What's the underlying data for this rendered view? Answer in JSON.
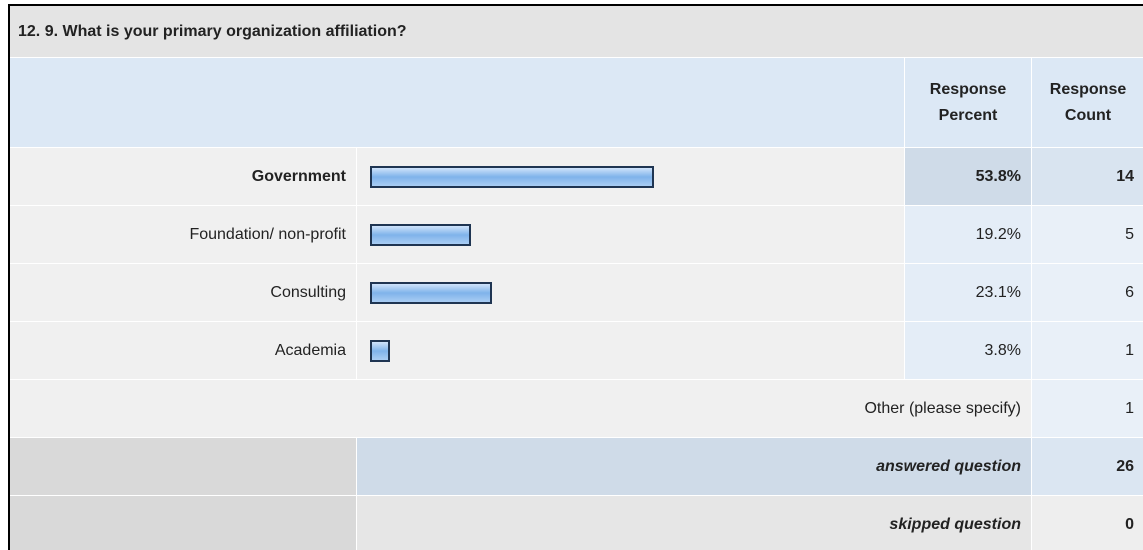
{
  "question": "12. 9. What is your primary organization affiliation?",
  "percent_header": "Response Percent",
  "count_header": "Response Count",
  "rows": [
    {
      "label": "Government",
      "percent": 53.8,
      "percent_label": "53.8%",
      "count": 14
    },
    {
      "label": "Foundation/ non-profit",
      "percent": 19.2,
      "percent_label": "19.2%",
      "count": 5
    },
    {
      "label": "Consulting",
      "percent": 23.1,
      "percent_label": "23.1%",
      "count": 6
    },
    {
      "label": "Academia",
      "percent": 3.8,
      "percent_label": "3.8%",
      "count": 1
    }
  ],
  "other": {
    "label": "Other (please specify)",
    "count": 1
  },
  "answered": {
    "label": "answered question",
    "count": 26
  },
  "skipped": {
    "label": "skipped question",
    "count": 0
  }
}
